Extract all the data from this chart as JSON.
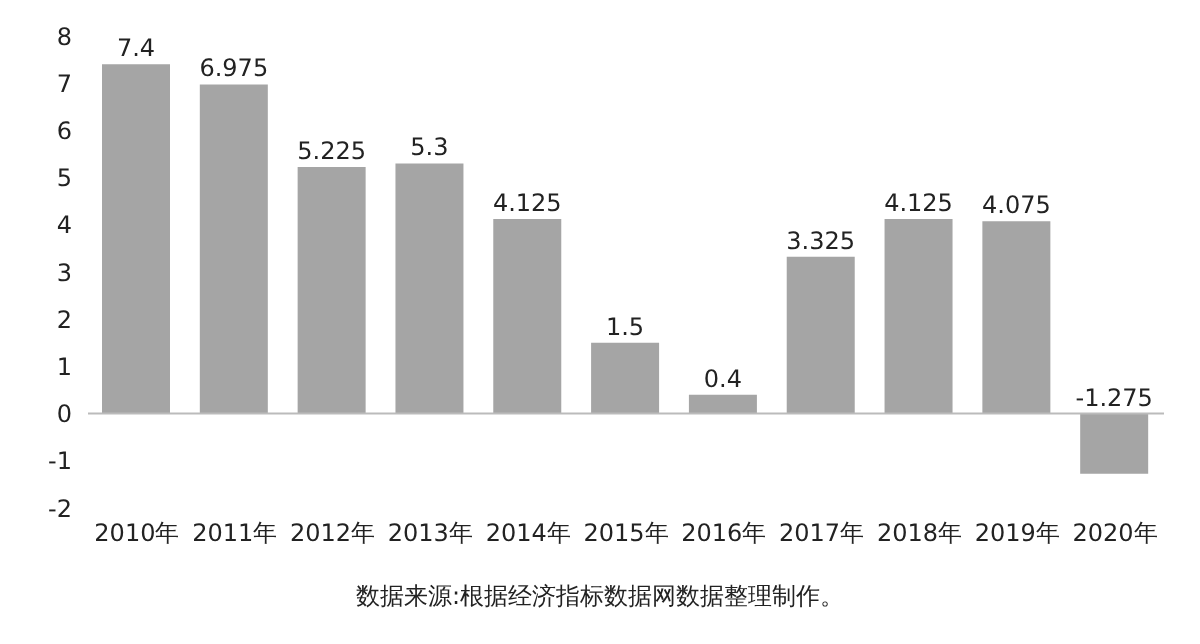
{
  "chart_data": {
    "type": "bar",
    "categories": [
      "2010年",
      "2011年",
      "2012年",
      "2013年",
      "2014年",
      "2015年",
      "2016年",
      "2017年",
      "2018年",
      "2019年",
      "2020年"
    ],
    "values": [
      7.4,
      6.975,
      5.225,
      5.3,
      4.125,
      1.5,
      0.4,
      3.325,
      4.125,
      4.075,
      -1.275
    ],
    "color": "#a5a5a5",
    "ylim": [
      -2,
      8
    ],
    "yticks": [
      -2,
      -1,
      0,
      1,
      2,
      3,
      4,
      5,
      6,
      7,
      8
    ],
    "data_labels": true,
    "annotations": [
      "数据来源:根据经济指标数据网数据整理制作。"
    ]
  }
}
